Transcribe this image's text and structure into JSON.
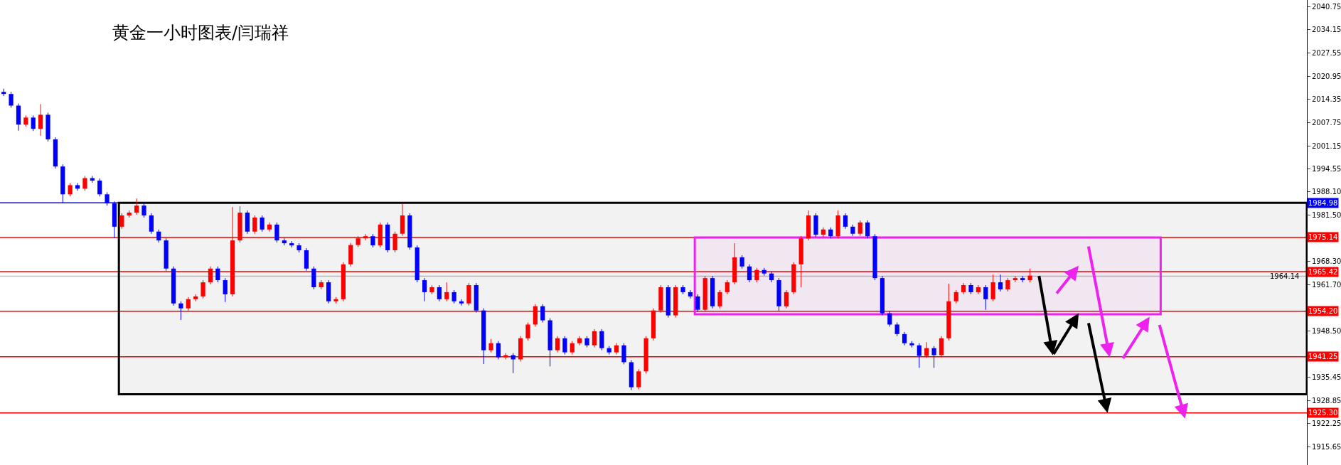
{
  "chart_data": {
    "type": "candlestick",
    "title": "黄金一小时图表/闫瑞祥",
    "categories": [
      null,
      null,
      null,
      null,
      null,
      null,
      null,
      null,
      null,
      null,
      null,
      null,
      null,
      null,
      null,
      null,
      null,
      null,
      null,
      null,
      null,
      null,
      null,
      null,
      null,
      null,
      null,
      null,
      null,
      null,
      null,
      null,
      null,
      null,
      null,
      null,
      null,
      null,
      null,
      null,
      null,
      null,
      null,
      null,
      null,
      null,
      null,
      null,
      null,
      null,
      null,
      null,
      null,
      null,
      null,
      null,
      null,
      null,
      null,
      null,
      null,
      null,
      null,
      null,
      null,
      null,
      null,
      null,
      null,
      null,
      null,
      null,
      null,
      null,
      null,
      null,
      null,
      null,
      null,
      null,
      null,
      null,
      null,
      null,
      null,
      null,
      null,
      null,
      null,
      null,
      null,
      null,
      null,
      null,
      null,
      null,
      null,
      null,
      null,
      null,
      null,
      null,
      null,
      null,
      null,
      null,
      null,
      null,
      null,
      null,
      null,
      null,
      null,
      null,
      null,
      null,
      null,
      null,
      null,
      null,
      null,
      null,
      null,
      null,
      null,
      null,
      null,
      null,
      null,
      null,
      null,
      null,
      null,
      null,
      null,
      null,
      null,
      null,
      null,
      null,
      null,
      null,
      null,
      null,
      null,
      null,
      null,
      null,
      null,
      null,
      null,
      null,
      null,
      null,
      null,
      null,
      null,
      null,
      null,
      null,
      null,
      null,
      null,
      null,
      null,
      null,
      null,
      null,
      null,
      null,
      null,
      null,
      null,
      null,
      null,
      null,
      null
    ],
    "ohlc": [
      [
        2016.5,
        2017.4,
        2015.3,
        2015.9
      ],
      [
        2015.9,
        2016.5,
        2012.0,
        2012.6
      ],
      [
        2012.6,
        2013.2,
        2005.5,
        2007.2
      ],
      [
        2007.2,
        2009.8,
        2006.6,
        2009.2
      ],
      [
        2009.2,
        2009.8,
        2005.4,
        2006.0
      ],
      [
        2006.0,
        2013.0,
        2004.0,
        2010.0
      ],
      [
        2010.0,
        2010.6,
        2002.4,
        2003.0
      ],
      [
        2003.0,
        2003.6,
        1994.7,
        1995.3
      ],
      [
        1995.3,
        1995.9,
        1984.9,
        1987.4
      ],
      [
        1987.4,
        1990.6,
        1986.8,
        1990.0
      ],
      [
        1990.0,
        1990.6,
        1988.4,
        1989.0
      ],
      [
        1989.0,
        1992.6,
        1988.4,
        1992.0
      ],
      [
        1992.0,
        1992.6,
        1990.7,
        1991.3
      ],
      [
        1991.3,
        1991.9,
        1986.8,
        1987.4
      ],
      [
        1987.4,
        1988.0,
        1984.2,
        1984.8
      ],
      [
        1984.8,
        1985.4,
        1974.9,
        1978.2
      ],
      [
        1978.2,
        1982.0,
        1977.6,
        1981.4
      ],
      [
        1981.4,
        1982.8,
        1980.8,
        1982.2
      ],
      [
        1982.2,
        1986.2,
        1981.6,
        1984.2
      ],
      [
        1984.2,
        1984.8,
        1980.8,
        1981.4
      ],
      [
        1981.4,
        1982.0,
        1976.2,
        1976.8
      ],
      [
        1976.8,
        1977.4,
        1973.7,
        1974.3
      ],
      [
        1974.3,
        1974.9,
        1965.7,
        1966.3
      ],
      [
        1966.3,
        1966.9,
        1955.8,
        1956.4
      ],
      [
        1956.4,
        1957.0,
        1951.7,
        1955.0
      ],
      [
        1955.0,
        1958.2,
        1954.4,
        1957.6
      ],
      [
        1957.6,
        1959.0,
        1957.0,
        1958.4
      ],
      [
        1958.4,
        1963.0,
        1957.8,
        1962.4
      ],
      [
        1962.4,
        1966.9,
        1961.8,
        1966.3
      ],
      [
        1966.3,
        1966.9,
        1962.4,
        1963.0
      ],
      [
        1963.0,
        1963.6,
        1956.8,
        1959.0
      ],
      [
        1959.0,
        1983.8,
        1958.4,
        1974.3
      ],
      [
        1974.3,
        1984.0,
        1973.7,
        1982.2
      ],
      [
        1982.2,
        1982.8,
        1976.2,
        1976.8
      ],
      [
        1976.8,
        1981.4,
        1976.2,
        1980.8
      ],
      [
        1980.8,
        1981.4,
        1976.8,
        1977.4
      ],
      [
        1977.4,
        1979.4,
        1976.8,
        1978.8
      ],
      [
        1978.8,
        1979.4,
        1973.7,
        1974.3
      ],
      [
        1974.3,
        1974.9,
        1972.9,
        1973.5
      ],
      [
        1973.5,
        1974.1,
        1972.3,
        1972.9
      ],
      [
        1972.9,
        1973.5,
        1970.9,
        1971.5
      ],
      [
        1971.5,
        1972.1,
        1965.7,
        1966.3
      ],
      [
        1966.3,
        1966.9,
        1960.4,
        1961.0
      ],
      [
        1961.0,
        1963.0,
        1960.4,
        1962.4
      ],
      [
        1962.4,
        1963.0,
        1956.4,
        1957.0
      ],
      [
        1957.0,
        1958.2,
        1956.4,
        1957.6
      ],
      [
        1957.6,
        1968.1,
        1957.0,
        1967.5
      ],
      [
        1967.5,
        1973.6,
        1966.9,
        1973.0
      ],
      [
        1973.0,
        1975.5,
        1972.4,
        1974.9
      ],
      [
        1974.9,
        1976.1,
        1974.3,
        1975.5
      ],
      [
        1975.5,
        1976.1,
        1972.3,
        1972.9
      ],
      [
        1972.9,
        1979.4,
        1972.3,
        1978.8
      ],
      [
        1978.8,
        1979.4,
        1970.9,
        1971.5
      ],
      [
        1971.5,
        1976.8,
        1970.9,
        1976.2
      ],
      [
        1976.2,
        1984.8,
        1975.6,
        1981.4
      ],
      [
        1981.4,
        1982.0,
        1971.7,
        1972.3
      ],
      [
        1972.3,
        1972.9,
        1962.4,
        1963.0
      ],
      [
        1963.0,
        1963.6,
        1957.0,
        1959.6
      ],
      [
        1959.6,
        1961.6,
        1959.0,
        1961.0
      ],
      [
        1961.0,
        1961.6,
        1957.0,
        1957.6
      ],
      [
        1957.6,
        1962.4,
        1957.0,
        1959.6
      ],
      [
        1959.6,
        1960.2,
        1956.4,
        1957.0
      ],
      [
        1957.0,
        1957.6,
        1955.8,
        1956.4
      ],
      [
        1956.4,
        1962.2,
        1955.8,
        1961.6
      ],
      [
        1961.6,
        1962.2,
        1953.8,
        1954.4
      ],
      [
        1954.4,
        1955.0,
        1939.2,
        1943.1
      ],
      [
        1943.1,
        1946.3,
        1942.5,
        1945.1
      ],
      [
        1945.1,
        1945.7,
        1940.5,
        1941.1
      ],
      [
        1941.1,
        1942.3,
        1940.5,
        1941.7
      ],
      [
        1941.7,
        1942.3,
        1936.6,
        1940.5
      ],
      [
        1940.5,
        1947.1,
        1939.9,
        1946.5
      ],
      [
        1946.5,
        1951.0,
        1945.9,
        1950.4
      ],
      [
        1950.4,
        1956.2,
        1949.8,
        1955.6
      ],
      [
        1955.6,
        1956.2,
        1951.0,
        1951.6
      ],
      [
        1951.6,
        1952.2,
        1938.5,
        1943.1
      ],
      [
        1943.1,
        1947.1,
        1942.5,
        1946.5
      ],
      [
        1946.5,
        1947.1,
        1941.9,
        1942.5
      ],
      [
        1942.5,
        1945.7,
        1941.9,
        1945.1
      ],
      [
        1945.1,
        1947.1,
        1944.5,
        1946.5
      ],
      [
        1946.5,
        1947.1,
        1943.9,
        1944.5
      ],
      [
        1944.5,
        1949.1,
        1943.9,
        1948.5
      ],
      [
        1948.5,
        1949.1,
        1943.1,
        1943.7
      ],
      [
        1943.7,
        1944.3,
        1941.9,
        1942.5
      ],
      [
        1942.5,
        1945.1,
        1941.9,
        1944.5
      ],
      [
        1944.5,
        1945.1,
        1939.1,
        1939.7
      ],
      [
        1939.7,
        1940.3,
        1931.8,
        1932.6
      ],
      [
        1932.6,
        1937.7,
        1932.0,
        1937.1
      ],
      [
        1937.1,
        1947.1,
        1936.5,
        1946.5
      ],
      [
        1946.5,
        1955.0,
        1945.9,
        1954.4
      ],
      [
        1954.4,
        1961.6,
        1953.8,
        1961.0
      ],
      [
        1961.0,
        1961.6,
        1952.4,
        1953.0
      ],
      [
        1953.0,
        1961.6,
        1952.4,
        1961.0
      ],
      [
        1961.0,
        1961.6,
        1959.0,
        1959.6
      ],
      [
        1959.6,
        1960.2,
        1957.8,
        1958.4
      ],
      [
        1958.4,
        1959.0,
        1954.0,
        1954.6
      ],
      [
        1954.6,
        1964.2,
        1954.0,
        1963.6
      ],
      [
        1963.6,
        1964.2,
        1955.0,
        1955.6
      ],
      [
        1955.6,
        1960.2,
        1955.0,
        1959.6
      ],
      [
        1959.6,
        1963.0,
        1959.0,
        1962.4
      ],
      [
        1962.4,
        1973.5,
        1961.8,
        1969.5
      ],
      [
        1969.5,
        1970.1,
        1966.3,
        1966.9
      ],
      [
        1966.9,
        1967.5,
        1962.4,
        1963.0
      ],
      [
        1963.0,
        1966.5,
        1962.4,
        1965.9
      ],
      [
        1965.9,
        1966.5,
        1964.3,
        1964.9
      ],
      [
        1964.9,
        1965.5,
        1962.4,
        1963.0
      ],
      [
        1963.0,
        1963.6,
        1954.2,
        1955.6
      ],
      [
        1955.6,
        1960.2,
        1955.0,
        1959.6
      ],
      [
        1959.6,
        1968.1,
        1959.0,
        1967.5
      ],
      [
        1967.5,
        1975.5,
        1961.0,
        1974.9
      ],
      [
        1974.9,
        1982.8,
        1974.3,
        1981.4
      ],
      [
        1981.4,
        1982.0,
        1975.3,
        1975.9
      ],
      [
        1975.9,
        1978.0,
        1975.3,
        1977.4
      ],
      [
        1977.4,
        1978.0,
        1974.9,
        1975.5
      ],
      [
        1975.5,
        1982.8,
        1974.9,
        1981.4
      ],
      [
        1981.4,
        1982.0,
        1977.6,
        1978.2
      ],
      [
        1978.2,
        1978.8,
        1975.6,
        1976.2
      ],
      [
        1976.2,
        1980.0,
        1975.6,
        1979.4
      ],
      [
        1979.4,
        1980.0,
        1974.9,
        1975.5
      ],
      [
        1975.5,
        1976.1,
        1963.0,
        1963.6
      ],
      [
        1963.6,
        1964.2,
        1953.0,
        1953.6
      ],
      [
        1953.6,
        1954.2,
        1949.8,
        1950.4
      ],
      [
        1950.4,
        1951.0,
        1947.1,
        1947.7
      ],
      [
        1947.7,
        1948.3,
        1944.5,
        1945.1
      ],
      [
        1945.1,
        1945.7,
        1943.9,
        1944.5
      ],
      [
        1944.5,
        1945.1,
        1938.1,
        1941.5
      ],
      [
        1941.5,
        1945.4,
        1940.9,
        1943.7
      ],
      [
        1943.7,
        1944.3,
        1938.1,
        1941.7
      ],
      [
        1941.7,
        1947.1,
        1941.1,
        1946.5
      ],
      [
        1946.5,
        1962.0,
        1945.9,
        1957.0
      ],
      [
        1957.0,
        1960.2,
        1956.4,
        1959.6
      ],
      [
        1959.6,
        1962.2,
        1959.0,
        1961.6
      ],
      [
        1961.6,
        1962.2,
        1959.0,
        1959.6
      ],
      [
        1959.6,
        1961.6,
        1959.0,
        1961.0
      ],
      [
        1961.0,
        1961.6,
        1954.6,
        1957.6
      ],
      [
        1957.6,
        1964.6,
        1957.0,
        1962.4
      ],
      [
        1962.4,
        1964.6,
        1959.8,
        1960.4
      ],
      [
        1960.4,
        1963.6,
        1959.8,
        1963.0
      ],
      [
        1963.0,
        1964.2,
        1962.4,
        1963.6
      ],
      [
        1963.6,
        1964.2,
        1962.4,
        1963.0
      ],
      [
        1963.0,
        1966.3,
        1962.4,
        1964.3
      ],
      null,
      null,
      null,
      null,
      null,
      null,
      null,
      null,
      null,
      null,
      null,
      null,
      null,
      null,
      null,
      null,
      null,
      null,
      null,
      null,
      null,
      null,
      null,
      null,
      null,
      null,
      null,
      null,
      null,
      null,
      null,
      null,
      null,
      null,
      null,
      null,
      null
    ],
    "colors": [
      "#0000ff",
      "#0000ff",
      "#0000ff",
      "#ff0000",
      "#0000ff",
      "#ff0000",
      "#0000ff",
      "#0000ff",
      "#0000ff",
      "#ff0000",
      "#0000ff",
      "#ff0000",
      "#0000ff",
      "#0000ff",
      "#0000ff",
      "#0000ff",
      "#ff0000",
      "#ff0000",
      "#ff0000",
      "#0000ff",
      "#0000ff",
      "#0000ff",
      "#0000ff",
      "#0000ff",
      "#0000ff",
      "#ff0000",
      "#ff0000",
      "#ff0000",
      "#ff0000",
      "#0000ff",
      "#0000ff",
      "#ff0000",
      "#ff0000",
      "#0000ff",
      "#ff0000",
      "#0000ff",
      "#ff0000",
      "#0000ff",
      "#0000ff",
      "#0000ff",
      "#0000ff",
      "#0000ff",
      "#0000ff",
      "#ff0000",
      "#0000ff",
      "#ff0000",
      "#ff0000",
      "#ff0000",
      "#ff0000",
      "#ff0000",
      "#0000ff",
      "#ff0000",
      "#0000ff",
      "#ff0000",
      "#ff0000",
      "#0000ff",
      "#0000ff",
      "#0000ff",
      "#ff0000",
      "#0000ff",
      "#ff0000",
      "#0000ff",
      "#0000ff",
      "#ff0000",
      "#0000ff",
      "#0000ff",
      "#ff0000",
      "#0000ff",
      "#ff0000",
      "#0000ff",
      "#ff0000",
      "#ff0000",
      "#ff0000",
      "#0000ff",
      "#0000ff",
      "#ff0000",
      "#0000ff",
      "#ff0000",
      "#ff0000",
      "#0000ff",
      "#ff0000",
      "#0000ff",
      "#0000ff",
      "#ff0000",
      "#0000ff",
      "#0000ff",
      "#ff0000",
      "#ff0000",
      "#ff0000",
      "#ff0000",
      "#0000ff",
      "#ff0000",
      "#0000ff",
      "#0000ff",
      "#0000ff",
      "#ff0000",
      "#0000ff",
      "#ff0000",
      "#ff0000",
      "#ff0000",
      "#0000ff",
      "#0000ff",
      "#ff0000",
      "#0000ff",
      "#0000ff",
      "#0000ff",
      "#ff0000",
      "#ff0000",
      "#ff0000",
      "#ff0000",
      "#0000ff",
      "#ff0000",
      "#0000ff",
      "#ff0000",
      "#0000ff",
      "#0000ff",
      "#ff0000",
      "#0000ff",
      "#0000ff",
      "#0000ff",
      "#0000ff",
      "#0000ff",
      "#0000ff",
      "#0000ff",
      "#0000ff",
      "#ff0000",
      "#0000ff",
      "#ff0000",
      "#ff0000",
      "#ff0000",
      "#ff0000",
      "#0000ff",
      "#ff0000",
      "#0000ff",
      "#ff0000",
      "#0000ff",
      "#ff0000",
      "#ff0000",
      "#0000ff",
      "#ff0000",
      null,
      null,
      null,
      null,
      null,
      null,
      null,
      null,
      null,
      null,
      null,
      null,
      null,
      null,
      null,
      null,
      null,
      null,
      null,
      null,
      null,
      null,
      null,
      null,
      null,
      null,
      null,
      null,
      null,
      null,
      null,
      null,
      null,
      null,
      null,
      null,
      null
    ],
    "ylim": [
      1910.5,
      2042.6
    ],
    "yticks": [
      2040.75,
      2034.15,
      2027.55,
      2020.95,
      2014.35,
      2007.75,
      2001.15,
      1994.55,
      {
        "value": 1988.1,
        "label": "1988.10"
      },
      {
        "value": 1981.5,
        "label": "1981.50"
      },
      {
        "value": 1968.3,
        "label": "1968.30"
      },
      {
        "value": 1961.7,
        "label": "1961.70"
      },
      {
        "value": 1948.5,
        "label": "1948.50"
      },
      1935.45,
      1928.85,
      1922.25,
      1915.65
    ],
    "ref_lines": [
      {
        "axis": "y",
        "value": 1984.98,
        "label": "1984.98",
        "color": "#0000ff"
      },
      {
        "axis": "y",
        "value": 1975.14,
        "label": "1975.14",
        "color": "#ff0000"
      },
      {
        "axis": "y",
        "value": 1965.42,
        "label": "1965.42",
        "color": "#ff0000"
      },
      {
        "axis": "y",
        "value": 1964.14,
        "label": "1964.14",
        "color": "#c0c0c0"
      },
      {
        "axis": "y",
        "value": 1954.2,
        "label": "1954.20",
        "color": "#ff0000"
      },
      {
        "axis": "y",
        "value": 1941.25,
        "label": "1941.25",
        "color": "#ff0000"
      },
      {
        "axis": "y",
        "value": 1925.3,
        "label": "1925.30",
        "color": "#ff0000"
      }
    ],
    "bands": [
      {
        "axis": "y",
        "from": 1930.6,
        "to": 1984.98,
        "color": "#000000"
      },
      {
        "axis": "y",
        "from": 1953.3,
        "to": 1975.14,
        "color": "#ee22ee"
      }
    ],
    "grid": false
  }
}
